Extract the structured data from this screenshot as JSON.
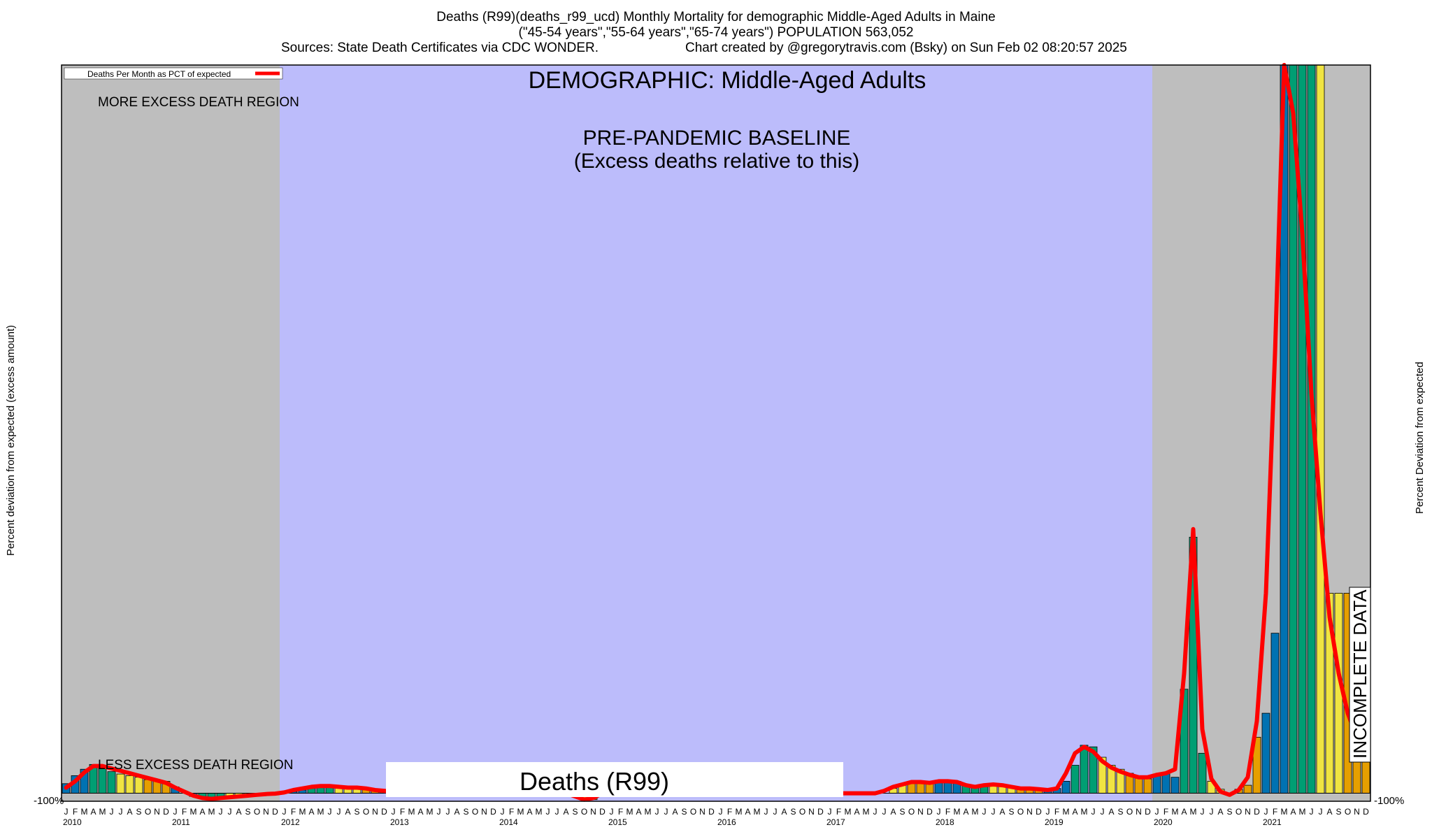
{
  "header": {
    "line1": "Deaths (R99)(deaths_r99_ucd) Monthly Mortality for demographic Middle-Aged Adults in Maine",
    "line2": "(\"45-54 years\",\"55-64 years\",\"65-74 years\") POPULATION 563,052",
    "line3_left": "Sources: State Death Certificates via CDC WONDER.",
    "line3_right": "Chart created by @gregorytravis.com (Bsky) on Sun Feb 02 08:20:57 2025"
  },
  "chart_data": {
    "type": "bar",
    "demographic_title": "DEMOGRAPHIC: Middle-Aged Adults",
    "baseline_label_1": "PRE-PANDEMIC BASELINE",
    "baseline_label_2": "(Excess deaths relative to this)",
    "more_region_label": "MORE EXCESS DEATH REGION",
    "less_region_label": "LESS EXCESS DEATH REGION",
    "legend_entry": "Deaths Per Month as PCT of expected",
    "bottom_label": "Deaths (R99)",
    "incomplete_label": "INCOMPLETE DATA",
    "ylabel_left": "Percent deviation from expected (excess amount)",
    "ylabel_right": "Percent Deviation from expected",
    "y_bottom_tick": "-100%",
    "ylim": [
      -100,
      9100
    ],
    "month_letters": [
      "J",
      "F",
      "M",
      "A",
      "M",
      "J",
      "J",
      "A",
      "S",
      "O",
      "N",
      "D"
    ],
    "years": [
      "2010",
      "2011",
      "2012",
      "2013",
      "2014",
      "2015",
      "2016",
      "2017",
      "2018",
      "2019",
      "2020",
      "2021"
    ],
    "x_start": "2010-01",
    "values": [
      120,
      220,
      300,
      360,
      320,
      270,
      240,
      220,
      200,
      170,
      150,
      150,
      80,
      0,
      -40,
      -60,
      -60,
      -50,
      -40,
      -30,
      -20,
      -20,
      -10,
      -10,
      0,
      20,
      40,
      60,
      70,
      80,
      80,
      70,
      70,
      60,
      50,
      40,
      30,
      20,
      10,
      0,
      0,
      0,
      0,
      0,
      0,
      0,
      0,
      0,
      0,
      0,
      0,
      0,
      0,
      0,
      0,
      0,
      0,
      0,
      0,
      0,
      0,
      0,
      0,
      0,
      0,
      0,
      0,
      0,
      0,
      0,
      0,
      0,
      0,
      0,
      0,
      0,
      0,
      0,
      0,
      0,
      0,
      0,
      0,
      0,
      0,
      0,
      0,
      0,
      0,
      0,
      0,
      0,
      0,
      0,
      0,
      0,
      0,
      0,
      0,
      0,
      0,
      0,
      0,
      0,
      0,
      0,
      0,
      0,
      0,
      0,
      0,
      0,
      0,
      0,
      0,
      0,
      0,
      0,
      0,
      0,
      0,
      0,
      0,
      0,
      0,
      0,
      0,
      0,
      0,
      0,
      0,
      0,
      0,
      0,
      0,
      0,
      0,
      0,
      0,
      0,
      0,
      0,
      0,
      0,
      0,
      0,
      0,
      0,
      0,
      0,
      0,
      0,
      0,
      0,
      0,
      0,
      0,
      0,
      0,
      0,
      0,
      0,
      0,
      0,
      0,
      0,
      0,
      0,
      0,
      0,
      0,
      0,
      0,
      0,
      0,
      0,
      0,
      0,
      0,
      0,
      0,
      0,
      0,
      0,
      0,
      0,
      0,
      0,
      0,
      0,
      0,
      0,
      0,
      0,
      0,
      0,
      0,
      0,
      0,
      0,
      0,
      0,
      0,
      0,
      0,
      0,
      0,
      0,
      0,
      0,
      0,
      0,
      0,
      0,
      0,
      0,
      0,
      0,
      0,
      0,
      0,
      0,
      0,
      0,
      0,
      0,
      0,
      0,
      0,
      0,
      0,
      0,
      0,
      0,
      0,
      0,
      0,
      0,
      0,
      0,
      0,
      0,
      0,
      0,
      0,
      0,
      0,
      0,
      0,
      0,
      0,
      0,
      0,
      0,
      0,
      0,
      0,
      0,
      0,
      0,
      0,
      0,
      0,
      0,
      0,
      0,
      0,
      0,
      0,
      0,
      0,
      0,
      0,
      0,
      0,
      0,
      0,
      0,
      0,
      0,
      0,
      0,
      0,
      0,
      0,
      0,
      0,
      0,
      0,
      0,
      0,
      0,
      0,
      0,
      0,
      0,
      0,
      0,
      0,
      0,
      0,
      0,
      0,
      0,
      0,
      0,
      0,
      0,
      0,
      0,
      0,
      0,
      0,
      0,
      0,
      0,
      0,
      0,
      0,
      0,
      0,
      0,
      0,
      0,
      0,
      0,
      0,
      0,
      0,
      0,
      0,
      0,
      0,
      0,
      0,
      0,
      0,
      0,
      0,
      0,
      0,
      0,
      0,
      0,
      0,
      0,
      0,
      0,
      0,
      0,
      0,
      0,
      0,
      0,
      0,
      0,
      0,
      0,
      0,
      0,
      0,
      0,
      0,
      0,
      0,
      0,
      0,
      0,
      0,
      0,
      0,
      0,
      0,
      0,
      0,
      0,
      0,
      0,
      0,
      0,
      0,
      0,
      0,
      0,
      0,
      0,
      0,
      0,
      0,
      0,
      0,
      0,
      0,
      0,
      0,
      0,
      0,
      0,
      0,
      0,
      0,
      0,
      0,
      0,
      0,
      0,
      0,
      0,
      0,
      0,
      0,
      0,
      0,
      0,
      0,
      0,
      0,
      0,
      0,
      0,
      0,
      0,
      0,
      0,
      0,
      0,
      0,
      0,
      0,
      0,
      0,
      0,
      0,
      0,
      0,
      0,
      0,
      0,
      0,
      0,
      0,
      0,
      0,
      0,
      0,
      0,
      0,
      0,
      0,
      0,
      0,
      0,
      0,
      0,
      0,
      0,
      0,
      0,
      0,
      0,
      0,
      0,
      0,
      0,
      0,
      0,
      0,
      0,
      0,
      0,
      0,
      0,
      0,
      0,
      0,
      0,
      0,
      0,
      0,
      0,
      0,
      0,
      0,
      0,
      0,
      0,
      0,
      0,
      0,
      0,
      0,
      0,
      0,
      0,
      0,
      0,
      0,
      0,
      0,
      0,
      0,
      0,
      0,
      0,
      0,
      0,
      0,
      0,
      0,
      0,
      0,
      0,
      0,
      0,
      0,
      0,
      0,
      0,
      0,
      0,
      0,
      0,
      0,
      0,
      0,
      0,
      0,
      0,
      0,
      0,
      0,
      0,
      0,
      0,
      0,
      0,
      0,
      0,
      0,
      0,
      0,
      0,
      0,
      0,
      0,
      0,
      0,
      0,
      0,
      0,
      0,
      0,
      0,
      0,
      0,
      0,
      0,
      0,
      0,
      0,
      0,
      0,
      0,
      0,
      0,
      0,
      0,
      0,
      0,
      0,
      0,
      0,
      0,
      0,
      0,
      0,
      0,
      0,
      0,
      0,
      0,
      0,
      0,
      0,
      0,
      0,
      0,
      0,
      0,
      0,
      0,
      0,
      0,
      0,
      0,
      0,
      0,
      0,
      0,
      0,
      0,
      0,
      0,
      0,
      0,
      0,
      0,
      0,
      0,
      0,
      0,
      0,
      0,
      0,
      0,
      0,
      0,
      0,
      0,
      0,
      0,
      0,
      0,
      0,
      0,
      0,
      0,
      0,
      0,
      0,
      0,
      0,
      0,
      0,
      0,
      0,
      0,
      0,
      0,
      0,
      0,
      0,
      0,
      0,
      0,
      0,
      0,
      0,
      0,
      0,
      0,
      0,
      0,
      0,
      0,
      0,
      0,
      0,
      0,
      0,
      0,
      0,
      0,
      0,
      0,
      0,
      0,
      0,
      0,
      0,
      0,
      0,
      0,
      0,
      0,
      0,
      0,
      0,
      0,
      0,
      0,
      0,
      0,
      0,
      0,
      0,
      0,
      0,
      0,
      0,
      0,
      0,
      0,
      0,
      0,
      0,
      0,
      0,
      0,
      0,
      0,
      0,
      0,
      0,
      0,
      0,
      0,
      0,
      0,
      0,
      0,
      0,
      0,
      0,
      0,
      0,
      0,
      0,
      0,
      0,
      0,
      0,
      0,
      0,
      0,
      0,
      0,
      0,
      0,
      0,
      0,
      0,
      0,
      0,
      0,
      0,
      0,
      0,
      0,
      0,
      0,
      0,
      0,
      0,
      0,
      0,
      0,
      0,
      0,
      0,
      0,
      0,
      0,
      0,
      0,
      0,
      0,
      0,
      0,
      0,
      0,
      0,
      0,
      0,
      0,
      0,
      0,
      0,
      0,
      0,
      0,
      0,
      0,
      0,
      0,
      0,
      0,
      0,
      0,
      0,
      0,
      0,
      0,
      0,
      0,
      0,
      0,
      0,
      0,
      0,
      0,
      0,
      0,
      0,
      0,
      0,
      0,
      0,
      0,
      0,
      0,
      0,
      0,
      0,
      0,
      0,
      0,
      0,
      0,
      0,
      0,
      0,
      0,
      0,
      0,
      0,
      0,
      0,
      0,
      0,
      0,
      0,
      0,
      0,
      0,
      0,
      0,
      0,
      0,
      0,
      0,
      0,
      0,
      0,
      0,
      0,
      0,
      0,
      0,
      0,
      0,
      0,
      0,
      0,
      0,
      0,
      0,
      0,
      0,
      0,
      0,
      0,
      0,
      0,
      0,
      0,
      0,
      0,
      0,
      0,
      0,
      0,
      0,
      0,
      0,
      0,
      0,
      0,
      0,
      0,
      0,
      0,
      0,
      0,
      0,
      0,
      0,
      0,
      0,
      0,
      0,
      0,
      0,
      0,
      0,
      0,
      0,
      0,
      0,
      0,
      0,
      0,
      0,
      0,
      0,
      0,
      0,
      0,
      0,
      0,
      0,
      0,
      0,
      0,
      0,
      0,
      0,
      0,
      0,
      0,
      0,
      0,
      0,
      0,
      0,
      0,
      0,
      0,
      0,
      0,
      0,
      0,
      0,
      0
    ],
    "monthly": [
      120,
      220,
      300,
      360,
      320,
      270,
      240,
      220,
      200,
      170,
      150,
      150,
      80,
      0,
      -40,
      -60,
      -60,
      -50,
      -40,
      -30,
      -20,
      -20,
      -10,
      -10,
      0,
      20,
      40,
      60,
      70,
      80,
      80,
      70,
      70,
      60,
      50,
      40,
      30,
      20,
      10,
      0,
      0,
      0,
      0,
      0,
      0,
      0,
      0,
      0,
      0,
      0,
      0,
      0,
      0,
      120,
      0,
      0,
      0,
      -60,
      -80,
      0,
      0,
      0,
      0,
      0,
      0,
      0,
      0,
      0,
      0,
      0,
      0,
      0,
      0,
      0,
      0,
      0,
      0,
      0,
      0,
      0,
      0,
      0,
      0,
      0,
      0,
      0,
      0,
      0,
      0,
      0,
      0,
      60,
      100,
      150,
      150,
      130,
      140,
      160,
      150,
      100,
      80,
      90,
      110,
      110,
      90,
      70,
      50,
      50,
      40,
      60,
      150,
      350,
      600,
      580,
      450,
      350,
      300,
      250,
      200,
      180,
      220,
      250,
      200,
      1300,
      3200,
      500,
      150,
      50,
      0,
      50,
      100,
      700,
      1000,
      2000,
      9100,
      9100,
      9100,
      9100,
      9100,
      2500,
      2500,
      2500,
      1500,
      1200
    ],
    "curve": [
      70,
      150,
      260,
      340,
      340,
      310,
      280,
      250,
      220,
      190,
      160,
      130,
      70,
      20,
      -30,
      -60,
      -70,
      -60,
      -50,
      -40,
      -30,
      -20,
      -10,
      -5,
      10,
      40,
      60,
      80,
      90,
      90,
      80,
      70,
      70,
      60,
      40,
      30,
      20,
      10,
      0,
      0,
      0,
      0,
      0,
      0,
      0,
      0,
      0,
      0,
      0,
      0,
      0,
      0,
      0,
      220,
      120,
      0,
      -40,
      -80,
      -60,
      0,
      0,
      0,
      0,
      0,
      0,
      0,
      0,
      0,
      0,
      0,
      0,
      0,
      0,
      0,
      0,
      0,
      0,
      0,
      0,
      0,
      0,
      0,
      0,
      0,
      0,
      0,
      0,
      0,
      0,
      0,
      30,
      80,
      110,
      140,
      140,
      130,
      150,
      150,
      140,
      100,
      80,
      100,
      110,
      100,
      80,
      60,
      60,
      50,
      40,
      60,
      250,
      500,
      580,
      520,
      400,
      320,
      270,
      230,
      200,
      200,
      230,
      250,
      300,
      1500,
      3300,
      800,
      180,
      20,
      -20,
      40,
      200,
      900,
      2500,
      5500,
      9100,
      8500,
      7000,
      5000,
      3500,
      2200,
      1500,
      1000,
      700,
      600
    ],
    "bar_colors_note": "cycle",
    "colors": {
      "background_region": "#bebebe",
      "baseline_region": "#bcbcfb",
      "curve": "#ff0000",
      "palette": [
        "#0072b2",
        "#009e73",
        "#f0e442",
        "#e69f00"
      ]
    }
  }
}
